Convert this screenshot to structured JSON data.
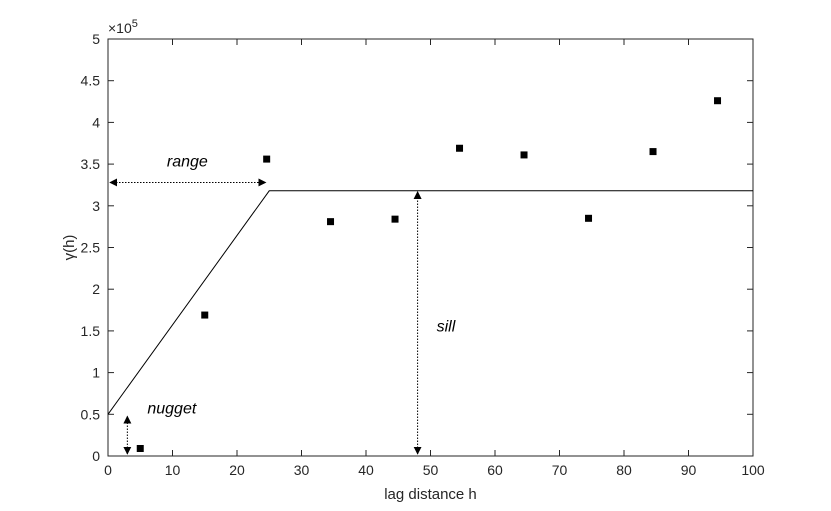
{
  "chart_data": {
    "type": "scatter",
    "title": "",
    "xlabel": "lag distance h",
    "ylabel": "γ(h)",
    "xlim": [
      0,
      100
    ],
    "ylim": [
      0,
      500000
    ],
    "x_ticks": [
      0,
      10,
      20,
      30,
      40,
      50,
      60,
      70,
      80,
      90,
      100
    ],
    "y_tick_labels": [
      "0",
      "0.5",
      "1",
      "1.5",
      "2",
      "2.5",
      "3",
      "3.5",
      "4",
      "4.5",
      "5"
    ],
    "y_scale_exponent_label": "×10",
    "y_scale_exponent_power": "5",
    "grid": false,
    "points": [
      {
        "x": 5,
        "y": 9000
      },
      {
        "x": 15,
        "y": 169000
      },
      {
        "x": 24.6,
        "y": 356000
      },
      {
        "x": 34.5,
        "y": 281000
      },
      {
        "x": 44.5,
        "y": 284000
      },
      {
        "x": 54.5,
        "y": 369000
      },
      {
        "x": 64.5,
        "y": 361000
      },
      {
        "x": 74.5,
        "y": 285000
      },
      {
        "x": 84.5,
        "y": 365000
      },
      {
        "x": 94.5,
        "y": 426000
      }
    ],
    "model_line": [
      {
        "x": 0,
        "y": 50000
      },
      {
        "x": 25,
        "y": 318000
      },
      {
        "x": 100,
        "y": 318000
      }
    ],
    "annotations": {
      "range": {
        "label": "range",
        "x_from": 0,
        "x_to": 24.6,
        "y": 328000
      },
      "sill": {
        "label": "sill",
        "x": 48,
        "y_from": 0,
        "y_to": 318000
      },
      "nugget": {
        "label": "nugget",
        "x": 3,
        "y_from": 0,
        "y_to": 50000
      }
    }
  },
  "colors": {
    "axis": "#262626",
    "marker": "#000000",
    "line": "#000000"
  }
}
